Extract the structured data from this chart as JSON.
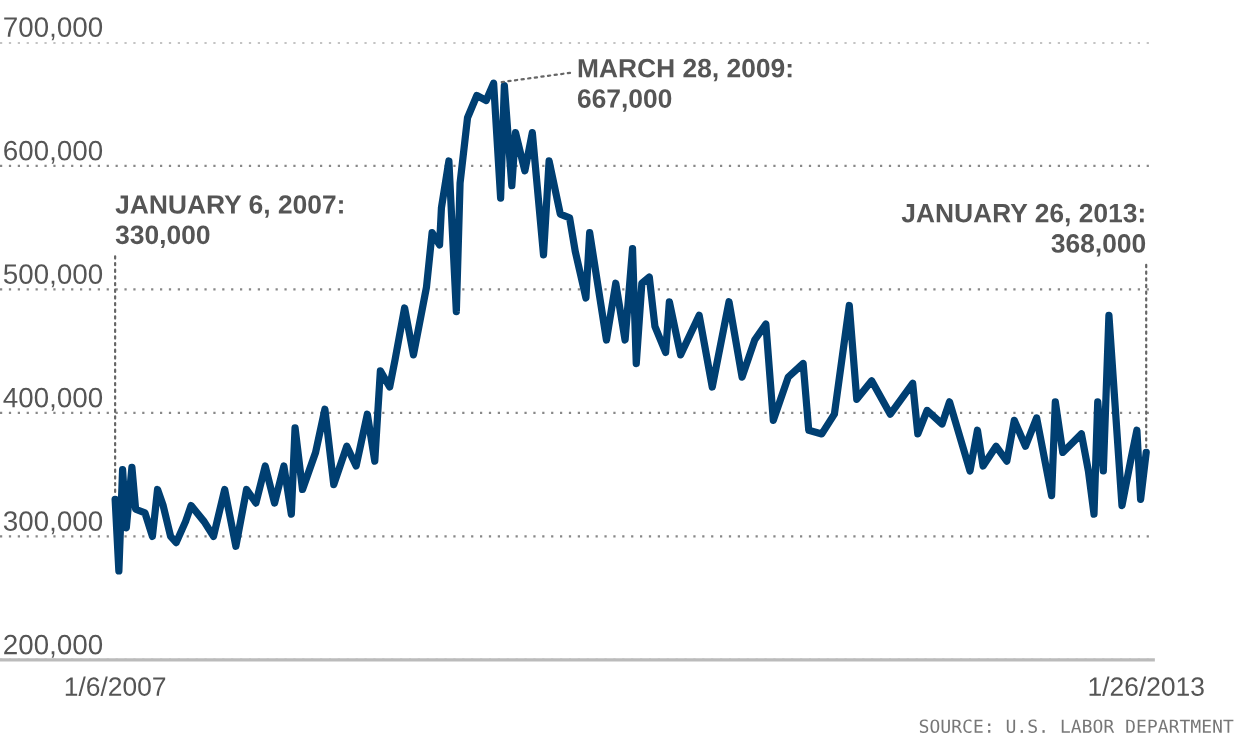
{
  "chart_data": {
    "type": "line",
    "x": [
      "2007-01-06",
      "2007-01-14",
      "2007-01-22",
      "2007-01-30",
      "2007-02-11",
      "2007-02-19",
      "2007-03-11",
      "2007-03-27",
      "2007-04-07",
      "2007-04-19",
      "2007-05-05",
      "2007-05-17",
      "2007-06-06",
      "2007-06-18",
      "2007-07-16",
      "2007-08-05",
      "2007-08-29",
      "2007-09-22",
      "2007-10-15",
      "2007-11-04",
      "2007-11-24",
      "2007-12-14",
      "2008-01-03",
      "2008-01-19",
      "2008-01-27",
      "2008-02-12",
      "2008-03-11",
      "2008-03-31",
      "2008-04-19",
      "2008-05-17",
      "2008-06-06",
      "2008-06-30",
      "2008-07-16",
      "2008-07-28",
      "2008-08-17",
      "2008-08-29",
      "2008-09-18",
      "2008-10-07",
      "2008-11-04",
      "2008-11-16",
      "2008-12-02",
      "2008-12-06",
      "2008-12-22",
      "2009-01-07",
      "2009-01-15",
      "2009-01-31",
      "2009-02-20",
      "2009-03-12",
      "2009-03-28",
      "2009-04-12",
      "2009-04-20",
      "2009-05-06",
      "2009-05-14",
      "2009-06-03",
      "2009-06-19",
      "2009-07-13",
      "2009-07-25",
      "2009-08-18",
      "2009-09-07",
      "2009-09-19",
      "2009-10-12",
      "2009-10-20",
      "2009-11-25",
      "2009-12-15",
      "2010-01-04",
      "2010-01-20",
      "2010-01-28",
      "2010-02-09",
      "2010-02-25",
      "2010-03-09",
      "2010-04-01",
      "2010-04-09",
      "2010-05-03",
      "2010-06-12",
      "2010-07-10",
      "2010-08-15",
      "2010-09-12",
      "2010-10-09",
      "2010-11-02",
      "2010-11-18",
      "2010-12-20",
      "2011-01-21",
      "2011-02-02",
      "2011-03-02",
      "2011-03-29",
      "2011-04-30",
      "2011-05-16",
      "2011-06-17",
      "2011-07-27",
      "2011-09-13",
      "2011-09-24",
      "2011-10-14",
      "2011-11-15",
      "2011-12-01",
      "2012-01-14",
      "2012-01-30",
      "2012-02-11",
      "2012-03-10",
      "2012-04-02",
      "2012-04-18",
      "2012-05-12",
      "2012-06-05",
      "2012-07-07",
      "2012-07-15",
      "2012-07-31",
      "2012-09-09",
      "2012-09-24",
      "2012-10-06",
      "2012-10-14",
      "2012-10-26",
      "2012-11-07",
      "2012-12-05",
      "2012-12-25",
      "2013-01-06",
      "2013-01-14",
      "2013-01-26"
    ],
    "series": [
      {
        "color": "#003f72",
        "values": [
          330000,
          272000,
          354000,
          307000,
          356000,
          322000,
          319000,
          300000,
          338000,
          325000,
          300000,
          295000,
          312000,
          325000,
          312000,
          300000,
          338000,
          292000,
          338000,
          327000,
          357000,
          327000,
          357000,
          318000,
          388000,
          338000,
          368000,
          403000,
          342000,
          373000,
          357000,
          399000,
          361000,
          434000,
          421000,
          444000,
          485000,
          447000,
          502000,
          546000,
          536000,
          566000,
          604000,
          482000,
          586000,
          639000,
          657000,
          653000,
          667000,
          574000,
          665000,
          584000,
          627000,
          596000,
          627000,
          528000,
          604000,
          561000,
          558000,
          531000,
          493000,
          546000,
          459000,
          505000,
          459000,
          533000,
          440000,
          505000,
          510000,
          470000,
          449000,
          490000,
          447000,
          479000,
          421000,
          490000,
          429000,
          459000,
          472000,
          394000,
          429000,
          440000,
          386000,
          383000,
          399000,
          487000,
          411000,
          426000,
          399000,
          424000,
          383000,
          402000,
          391000,
          409000,
          353000,
          386000,
          357000,
          373000,
          361000,
          394000,
          373000,
          396000,
          333000,
          409000,
          368000,
          383000,
          353000,
          318000,
          409000,
          353000,
          479000,
          325000,
          364000,
          386000,
          330000,
          368000
        ]
      }
    ],
    "xlim": [
      "2006-05-04",
      "2013-02-10"
    ],
    "xticks": [
      {
        "value": "2007-01-06",
        "label": "1/6/2007"
      },
      {
        "value": "2013-01-26",
        "label": "1/26/2013"
      }
    ],
    "ylim": [
      200000,
      700000
    ],
    "yticks": [
      {
        "value": 200000,
        "label": "200,000"
      },
      {
        "value": 300000,
        "label": "300,000"
      },
      {
        "value": 400000,
        "label": "400,000"
      },
      {
        "value": 500000,
        "label": "500,000"
      },
      {
        "value": 600000,
        "label": "600,000"
      },
      {
        "value": 700000,
        "label": "700,000"
      }
    ],
    "grid": "y",
    "annotations": [
      {
        "text": "JANUARY 6, 2007:\n330,000",
        "x": "2007-01-06",
        "y": 330000
      },
      {
        "text": "MARCH 28, 2009:\n667,000",
        "x": "2009-03-28",
        "y": 667000
      },
      {
        "text": "JANUARY 26, 2013:\n368,000",
        "x": "2013-01-26",
        "y": 368000
      },
      "SOURCE: U.S. LABOR DEPARTMENT"
    ]
  }
}
